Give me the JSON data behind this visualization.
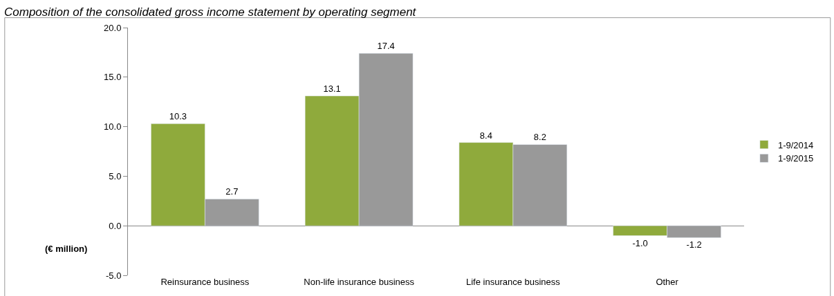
{
  "chart_data": {
    "type": "bar",
    "title": "Composition of the consolidated gross income statement by operating segment",
    "ylabel": "(€ million)",
    "categories": [
      "Reinsurance business",
      "Non-life insurance business",
      "Life insurance business",
      "Other"
    ],
    "series": [
      {
        "name": "1-9/2014",
        "color": "#8faa3c",
        "values": [
          10.3,
          13.1,
          8.4,
          -1.0
        ],
        "value_labels": [
          "10.3",
          "13.1",
          "8.4",
          "-1.0"
        ]
      },
      {
        "name": "1-9/2015",
        "color": "#999999",
        "values": [
          2.7,
          17.4,
          8.2,
          -1.2
        ],
        "value_labels": [
          "2.7",
          "17.4",
          "8.2",
          "-1.2"
        ]
      }
    ],
    "ylim": [
      -5,
      20
    ],
    "yticks": [
      {
        "value": -5,
        "label": "-5.0"
      },
      {
        "value": 0,
        "label": "0.0"
      },
      {
        "value": 5,
        "label": "5.0"
      },
      {
        "value": 10,
        "label": "10.0"
      },
      {
        "value": 15,
        "label": "15.0"
      },
      {
        "value": 20,
        "label": "20.0"
      }
    ],
    "legend": "right"
  }
}
